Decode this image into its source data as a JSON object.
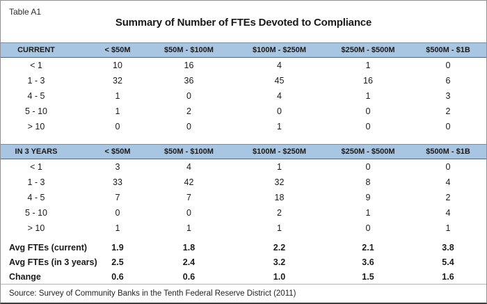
{
  "table_label": "Table A1",
  "source": "Source: Survey of Community Banks in the Tenth Federal Reserve District (2011)",
  "chart_data": {
    "type": "table",
    "title": "Summary of Number of FTEs Devoted to Compliance",
    "columns": [
      "< $50M",
      "$50M - $100M",
      "$100M - $250M",
      "$250M - $500M",
      "$500M - $1B"
    ],
    "sections": [
      {
        "header": "CURRENT",
        "rows": [
          {
            "label": "< 1",
            "values": [
              "10",
              "16",
              "4",
              "1",
              "0"
            ]
          },
          {
            "label": "1 - 3",
            "values": [
              "32",
              "36",
              "45",
              "16",
              "6"
            ]
          },
          {
            "label": "4 - 5",
            "values": [
              "1",
              "0",
              "4",
              "1",
              "3"
            ]
          },
          {
            "label": "5 - 10",
            "values": [
              "1",
              "2",
              "0",
              "0",
              "2"
            ]
          },
          {
            "label": "> 10",
            "values": [
              "0",
              "0",
              "1",
              "0",
              "0"
            ]
          }
        ]
      },
      {
        "header": "IN 3 YEARS",
        "rows": [
          {
            "label": "< 1",
            "values": [
              "3",
              "4",
              "1",
              "0",
              "0"
            ]
          },
          {
            "label": "1 - 3",
            "values": [
              "33",
              "42",
              "32",
              "8",
              "4"
            ]
          },
          {
            "label": "4 - 5",
            "values": [
              "7",
              "7",
              "18",
              "9",
              "2"
            ]
          },
          {
            "label": "5 - 10",
            "values": [
              "0",
              "0",
              "2",
              "1",
              "4"
            ]
          },
          {
            "label": "> 10",
            "values": [
              "1",
              "1",
              "1",
              "0",
              "1"
            ]
          }
        ]
      }
    ],
    "summary_rows": [
      {
        "label": "Avg FTEs (current)",
        "values": [
          "1.9",
          "1.8",
          "2.2",
          "2.1",
          "3.8"
        ]
      },
      {
        "label": "Avg FTEs (in 3 years)",
        "values": [
          "2.5",
          "2.4",
          "3.2",
          "3.6",
          "5.4"
        ]
      },
      {
        "label": "Change",
        "values": [
          "0.6",
          "0.6",
          "1.0",
          "1.5",
          "1.6"
        ]
      }
    ]
  },
  "colors": {
    "header_band_bg": "#a8c5e2",
    "header_band_border_top": "#6d8eb4",
    "header_band_border_bottom": "#49698e",
    "text": "#1a1a1a",
    "outer_border": "#8f8f8f",
    "bottom_border": "#3f3f3f",
    "divider": "#b3b3b3",
    "background": "#ffffff"
  }
}
